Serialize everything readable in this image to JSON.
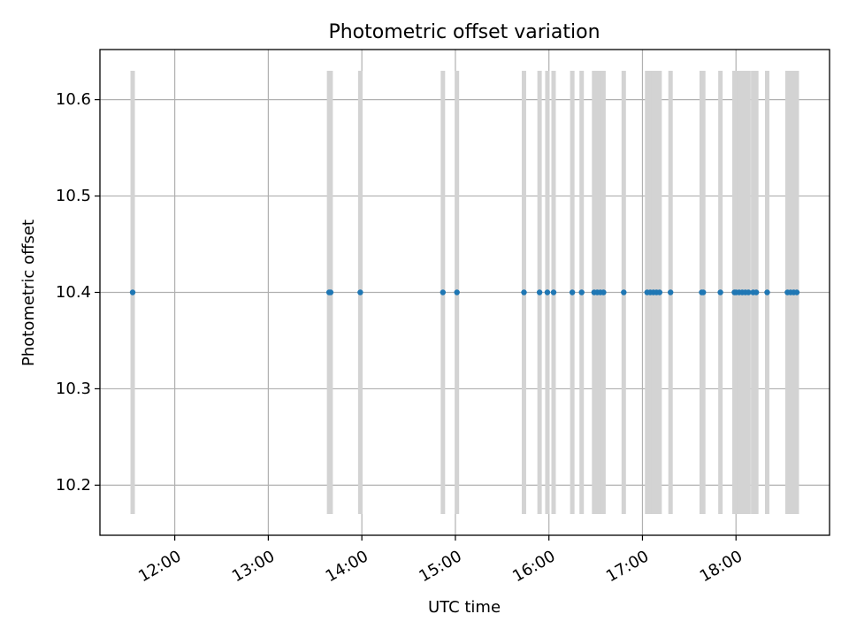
{
  "chart_data": {
    "type": "scatter",
    "title": "Photometric offset variation",
    "xlabel": "UTC time",
    "ylabel": "Photometric offset",
    "x_axis_type": "time",
    "xlim": [
      "11:12",
      "19:00"
    ],
    "ylim": [
      10.148,
      10.652
    ],
    "x_ticks": [
      "12:00",
      "13:00",
      "14:00",
      "15:00",
      "16:00",
      "17:00",
      "18:00"
    ],
    "y_ticks": [
      "10.2",
      "10.3",
      "10.4",
      "10.5",
      "10.6"
    ],
    "grid": true,
    "marker_color": "#1f77b4",
    "errorbar_color": "#d3d3d3",
    "points": [
      {
        "x": "11:33",
        "y": 10.4,
        "ylo": 10.17,
        "yhi": 10.63
      },
      {
        "x": "13:39",
        "y": 10.4,
        "ylo": 10.17,
        "yhi": 10.63
      },
      {
        "x": "13:40",
        "y": 10.4,
        "ylo": 10.17,
        "yhi": 10.63
      },
      {
        "x": "13:59",
        "y": 10.4,
        "ylo": 10.17,
        "yhi": 10.63
      },
      {
        "x": "14:52",
        "y": 10.4,
        "ylo": 10.17,
        "yhi": 10.63
      },
      {
        "x": "15:01",
        "y": 10.4,
        "ylo": 10.17,
        "yhi": 10.63
      },
      {
        "x": "15:44",
        "y": 10.4,
        "ylo": 10.17,
        "yhi": 10.63
      },
      {
        "x": "15:54",
        "y": 10.4,
        "ylo": 10.17,
        "yhi": 10.63
      },
      {
        "x": "15:59",
        "y": 10.4,
        "ylo": 10.17,
        "yhi": 10.63
      },
      {
        "x": "16:03",
        "y": 10.4,
        "ylo": 10.17,
        "yhi": 10.63
      },
      {
        "x": "16:15",
        "y": 10.4,
        "ylo": 10.17,
        "yhi": 10.63
      },
      {
        "x": "16:21",
        "y": 10.4,
        "ylo": 10.17,
        "yhi": 10.63
      },
      {
        "x": "16:29",
        "y": 10.4,
        "ylo": 10.17,
        "yhi": 10.63
      },
      {
        "x": "16:31",
        "y": 10.4,
        "ylo": 10.17,
        "yhi": 10.63
      },
      {
        "x": "16:33",
        "y": 10.4,
        "ylo": 10.17,
        "yhi": 10.63
      },
      {
        "x": "16:35",
        "y": 10.4,
        "ylo": 10.17,
        "yhi": 10.63
      },
      {
        "x": "16:48",
        "y": 10.4,
        "ylo": 10.17,
        "yhi": 10.63
      },
      {
        "x": "17:03",
        "y": 10.4,
        "ylo": 10.17,
        "yhi": 10.63
      },
      {
        "x": "17:05",
        "y": 10.4,
        "ylo": 10.17,
        "yhi": 10.63
      },
      {
        "x": "17:07",
        "y": 10.4,
        "ylo": 10.17,
        "yhi": 10.63
      },
      {
        "x": "17:09",
        "y": 10.4,
        "ylo": 10.17,
        "yhi": 10.63
      },
      {
        "x": "17:11",
        "y": 10.4,
        "ylo": 10.17,
        "yhi": 10.63
      },
      {
        "x": "17:18",
        "y": 10.4,
        "ylo": 10.17,
        "yhi": 10.63
      },
      {
        "x": "17:38",
        "y": 10.4,
        "ylo": 10.17,
        "yhi": 10.63
      },
      {
        "x": "17:39",
        "y": 10.4,
        "ylo": 10.17,
        "yhi": 10.63
      },
      {
        "x": "17:50",
        "y": 10.4,
        "ylo": 10.17,
        "yhi": 10.63
      },
      {
        "x": "17:59",
        "y": 10.4,
        "ylo": 10.17,
        "yhi": 10.63
      },
      {
        "x": "18:00",
        "y": 10.4,
        "ylo": 10.17,
        "yhi": 10.63
      },
      {
        "x": "18:02",
        "y": 10.4,
        "ylo": 10.17,
        "yhi": 10.63
      },
      {
        "x": "18:04",
        "y": 10.4,
        "ylo": 10.17,
        "yhi": 10.63
      },
      {
        "x": "18:06",
        "y": 10.4,
        "ylo": 10.17,
        "yhi": 10.63
      },
      {
        "x": "18:08",
        "y": 10.4,
        "ylo": 10.17,
        "yhi": 10.63
      },
      {
        "x": "18:11",
        "y": 10.4,
        "ylo": 10.17,
        "yhi": 10.63
      },
      {
        "x": "18:13",
        "y": 10.4,
        "ylo": 10.17,
        "yhi": 10.63
      },
      {
        "x": "18:20",
        "y": 10.4,
        "ylo": 10.17,
        "yhi": 10.63
      },
      {
        "x": "18:33",
        "y": 10.4,
        "ylo": 10.17,
        "yhi": 10.63
      },
      {
        "x": "18:35",
        "y": 10.4,
        "ylo": 10.17,
        "yhi": 10.63
      },
      {
        "x": "18:37",
        "y": 10.4,
        "ylo": 10.17,
        "yhi": 10.63
      },
      {
        "x": "18:39",
        "y": 10.4,
        "ylo": 10.17,
        "yhi": 10.63
      }
    ]
  }
}
